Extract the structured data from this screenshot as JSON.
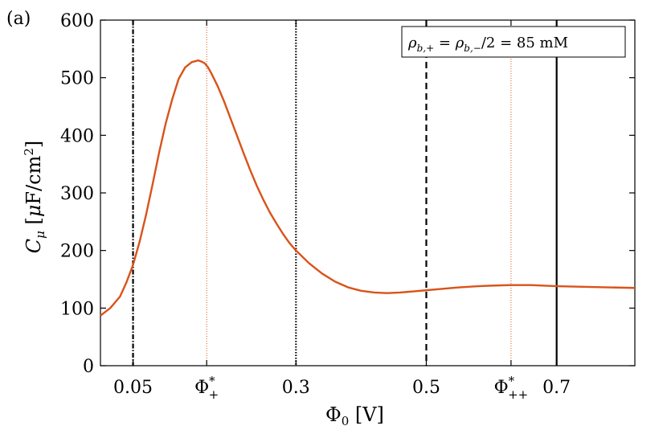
{
  "panel_label": "(a)",
  "chart_data": {
    "type": "line",
    "xlabel": "Φ₀ [V]",
    "ylabel": "C_μ [μF/cm²]",
    "xlim": [
      0.0,
      0.82
    ],
    "ylim": [
      0,
      600
    ],
    "xticks": [
      {
        "value": 0.05,
        "label": "0.05"
      },
      {
        "value": 0.163,
        "label": "Φ₊*"
      },
      {
        "value": 0.3,
        "label": "0.3"
      },
      {
        "value": 0.5,
        "label": "0.5"
      },
      {
        "value": 0.63,
        "label": "Φ₊₊*"
      },
      {
        "value": 0.7,
        "label": "0.7"
      }
    ],
    "yticks": [
      0,
      100,
      200,
      300,
      400,
      500,
      600
    ],
    "legend": {
      "text": "ρ_{b,+} = ρ_{b,−}/2 = 85 mM",
      "position": "top-right"
    },
    "vertical_lines": [
      {
        "x": 0.05,
        "style": "dashdot",
        "color": "#000000"
      },
      {
        "x": 0.163,
        "style": "dotted-thin",
        "color": "#d95319"
      },
      {
        "x": 0.3,
        "style": "dotted",
        "color": "#000000"
      },
      {
        "x": 0.5,
        "style": "dashed",
        "color": "#000000"
      },
      {
        "x": 0.63,
        "style": "dotted-thin",
        "color": "#d95319"
      },
      {
        "x": 0.7,
        "style": "solid",
        "color": "#000000"
      }
    ],
    "series": [
      {
        "color": "#d95319",
        "x": [
          0.0,
          0.015,
          0.03,
          0.04,
          0.05,
          0.06,
          0.07,
          0.08,
          0.09,
          0.1,
          0.11,
          0.12,
          0.13,
          0.14,
          0.15,
          0.155,
          0.16,
          0.165,
          0.17,
          0.18,
          0.19,
          0.2,
          0.21,
          0.22,
          0.23,
          0.24,
          0.25,
          0.26,
          0.27,
          0.28,
          0.29,
          0.3,
          0.32,
          0.34,
          0.36,
          0.38,
          0.4,
          0.42,
          0.44,
          0.46,
          0.48,
          0.5,
          0.52,
          0.55,
          0.58,
          0.6,
          0.63,
          0.66,
          0.7,
          0.74,
          0.78,
          0.82
        ],
        "y": [
          87,
          100,
          120,
          145,
          175,
          215,
          262,
          315,
          370,
          420,
          462,
          498,
          518,
          527,
          530,
          528,
          525,
          518,
          508,
          485,
          458,
          428,
          398,
          368,
          339,
          312,
          288,
          266,
          247,
          229,
          213,
          200,
          178,
          160,
          146,
          136,
          130,
          127,
          126,
          127,
          129,
          131,
          133,
          136,
          138,
          139,
          140,
          140,
          138,
          137,
          136,
          135
        ]
      }
    ]
  }
}
